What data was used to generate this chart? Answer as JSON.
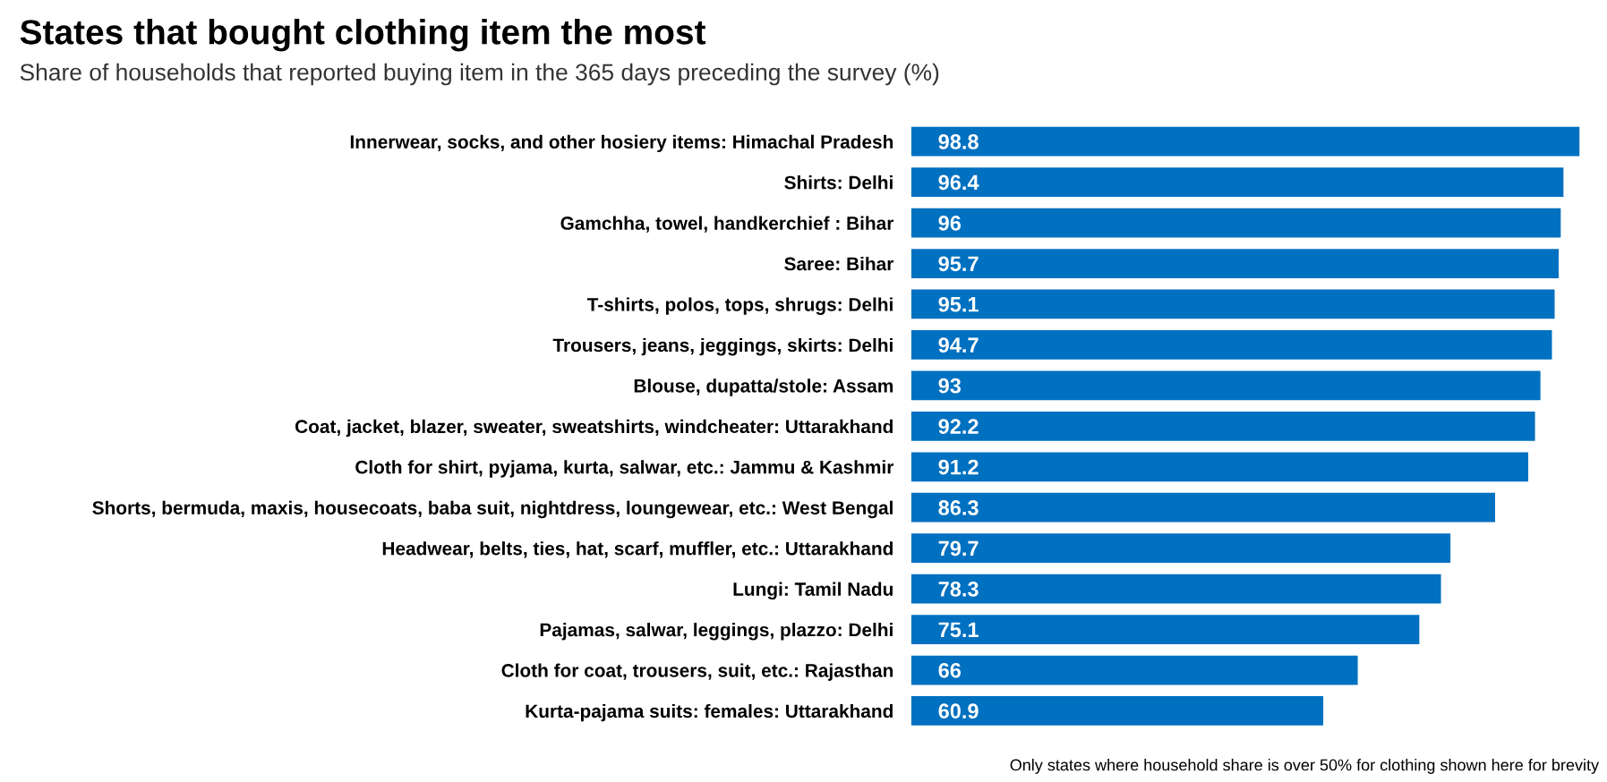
{
  "chart_data": {
    "type": "bar",
    "orientation": "horizontal",
    "title": "States that bought clothing item the most",
    "subtitle": "Share of households that reported buying item in the 365 days preceding the survey (%)",
    "categories": [
      "Innerwear, socks, and other hosiery items: Himachal Pradesh",
      "Shirts: Delhi",
      "Gamchha, towel, handkerchief : Bihar",
      "Saree: Bihar",
      "T-shirts, polos, tops, shrugs: Delhi",
      "Trousers, jeans, jeggings, skirts: Delhi",
      "Blouse, dupatta/stole: Assam",
      "Coat, jacket, blazer, sweater, sweatshirts, windcheater: Uttarakhand",
      "Cloth for shirt, pyjama, kurta, salwar, etc.: Jammu & Kashmir",
      "Shorts, bermuda, maxis, housecoats, baba suit, nightdress, loungewear, etc.: West Bengal",
      "Headwear, belts, ties, hat, scarf, muffler, etc.: Uttarakhand",
      "Lungi: Tamil Nadu",
      "Pajamas, salwar, leggings, plazzo: Delhi",
      "Cloth for coat, trousers, suit, etc.: Rajasthan",
      "Kurta-pajama suits: females: Uttarakhand"
    ],
    "values": [
      98.8,
      96.4,
      96,
      95.7,
      95.1,
      94.7,
      93,
      92.2,
      91.2,
      86.3,
      79.7,
      78.3,
      75.1,
      66,
      60.9
    ],
    "color": "#0070c0",
    "data_labels": true,
    "annotations": [
      "Only states where household share is over 50% for clothing shown here for brevity"
    ]
  }
}
